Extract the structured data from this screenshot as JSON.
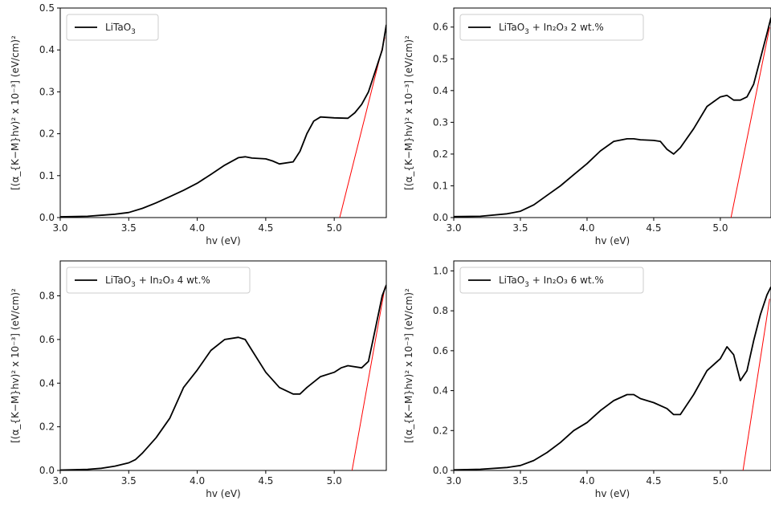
{
  "chart_data": [
    {
      "type": "line",
      "xlabel": "hv (eV)",
      "ylabel": "[(α_{K−M}hv)² x 10⁻³] (eV/cm)²",
      "xlim": [
        3.0,
        5.38
      ],
      "ylim": [
        0.0,
        0.5
      ],
      "xticks": [
        "3.0",
        "3.5",
        "4.0",
        "4.5",
        "5.0"
      ],
      "yticks": [
        "0.0",
        "0.1",
        "0.2",
        "0.3",
        "0.4",
        "0.5"
      ],
      "legend": {
        "placement": "upper-left",
        "label_base": "LiTaO",
        "label_sub": "3",
        "label_rest": ""
      },
      "series": [
        {
          "name": "LiTaO3",
          "color": "#000000",
          "x": [
            3.0,
            3.2,
            3.4,
            3.5,
            3.6,
            3.7,
            3.8,
            3.9,
            4.0,
            4.1,
            4.2,
            4.3,
            4.35,
            4.4,
            4.5,
            4.55,
            4.6,
            4.7,
            4.75,
            4.8,
            4.85,
            4.9,
            5.0,
            5.1,
            5.15,
            5.2,
            5.25,
            5.3,
            5.35,
            5.38
          ],
          "y": [
            0.002,
            0.003,
            0.008,
            0.012,
            0.022,
            0.035,
            0.05,
            0.065,
            0.082,
            0.103,
            0.125,
            0.143,
            0.145,
            0.142,
            0.14,
            0.135,
            0.128,
            0.133,
            0.158,
            0.2,
            0.23,
            0.24,
            0.238,
            0.237,
            0.25,
            0.27,
            0.3,
            0.35,
            0.4,
            0.46
          ]
        }
      ],
      "tangent": {
        "color": "#ff0000",
        "x": [
          5.04,
          5.37
        ],
        "y": [
          0.0,
          0.43
        ]
      }
    },
    {
      "type": "line",
      "xlabel": "hv (eV)",
      "ylabel": "[(α_{K−M}hv)² x 10⁻³] (eV/cm)²",
      "xlim": [
        3.0,
        5.38
      ],
      "ylim": [
        0.0,
        0.66
      ],
      "xticks": [
        "3.0",
        "3.5",
        "4.0",
        "4.5",
        "5.0"
      ],
      "yticks": [
        "0.0",
        "0.1",
        "0.2",
        "0.3",
        "0.4",
        "0.5",
        "0.6"
      ],
      "legend": {
        "placement": "upper-left",
        "label_base": "LiTaO",
        "label_sub": "3",
        "label_rest": " + In₂O₃ 2 wt.%"
      },
      "series": [
        {
          "name": "LiTaO3 + In2O3 2 wt.%",
          "color": "#000000",
          "x": [
            3.0,
            3.2,
            3.4,
            3.5,
            3.6,
            3.7,
            3.8,
            3.9,
            4.0,
            4.1,
            4.2,
            4.3,
            4.35,
            4.4,
            4.5,
            4.55,
            4.6,
            4.65,
            4.7,
            4.8,
            4.9,
            5.0,
            5.05,
            5.1,
            5.15,
            5.2,
            5.25,
            5.3,
            5.35,
            5.38
          ],
          "y": [
            0.003,
            0.004,
            0.012,
            0.02,
            0.04,
            0.07,
            0.1,
            0.135,
            0.17,
            0.21,
            0.24,
            0.248,
            0.248,
            0.245,
            0.243,
            0.24,
            0.215,
            0.2,
            0.22,
            0.28,
            0.35,
            0.38,
            0.385,
            0.37,
            0.37,
            0.38,
            0.42,
            0.5,
            0.58,
            0.63
          ]
        }
      ],
      "tangent": {
        "color": "#ff0000",
        "x": [
          5.08,
          5.37
        ],
        "y": [
          0.0,
          0.6
        ]
      }
    },
    {
      "type": "line",
      "xlabel": "hv (eV)",
      "ylabel": "[(α_{K−M}hv)² x 10⁻³] (eV/cm)²",
      "xlim": [
        3.0,
        5.38
      ],
      "ylim": [
        0.0,
        0.96
      ],
      "xticks": [
        "3.0",
        "3.5",
        "4.0",
        "4.5",
        "5.0"
      ],
      "yticks": [
        "0.0",
        "0.2",
        "0.4",
        "0.6",
        "0.8"
      ],
      "legend": {
        "placement": "upper-left",
        "label_base": "LiTaO",
        "label_sub": "3",
        "label_rest": " + In₂O₃ 4 wt.%"
      },
      "series": [
        {
          "name": "LiTaO3 + In2O3 4 wt.%",
          "color": "#000000",
          "x": [
            3.0,
            3.2,
            3.3,
            3.4,
            3.5,
            3.55,
            3.6,
            3.7,
            3.8,
            3.9,
            4.0,
            4.1,
            4.2,
            4.3,
            4.35,
            4.4,
            4.5,
            4.6,
            4.7,
            4.75,
            4.8,
            4.9,
            5.0,
            5.05,
            5.1,
            5.2,
            5.25,
            5.3,
            5.35,
            5.38
          ],
          "y": [
            0.002,
            0.005,
            0.01,
            0.02,
            0.035,
            0.05,
            0.08,
            0.15,
            0.24,
            0.38,
            0.46,
            0.55,
            0.6,
            0.61,
            0.6,
            0.55,
            0.45,
            0.38,
            0.35,
            0.35,
            0.38,
            0.43,
            0.45,
            0.47,
            0.48,
            0.47,
            0.5,
            0.65,
            0.8,
            0.85
          ]
        }
      ],
      "tangent": {
        "color": "#ff0000",
        "x": [
          5.13,
          5.37
        ],
        "y": [
          0.0,
          0.84
        ]
      }
    },
    {
      "type": "line",
      "xlabel": "hv (eV)",
      "ylabel": "[(α_{K−M}hv)² x 10⁻³] (eV/cm)²",
      "xlim": [
        3.0,
        5.38
      ],
      "ylim": [
        0.0,
        1.05
      ],
      "xticks": [
        "3.0",
        "3.5",
        "4.0",
        "4.5",
        "5.0"
      ],
      "yticks": [
        "0.0",
        "0.2",
        "0.4",
        "0.6",
        "0.8",
        "1.0"
      ],
      "legend": {
        "placement": "upper-left",
        "label_base": "LiTaO",
        "label_sub": "3",
        "label_rest": " + In₂O₃ 6 wt.%"
      },
      "series": [
        {
          "name": "LiTaO3 + In2O3 6 wt.%",
          "color": "#000000",
          "x": [
            3.0,
            3.2,
            3.4,
            3.5,
            3.6,
            3.7,
            3.8,
            3.9,
            4.0,
            4.1,
            4.2,
            4.3,
            4.35,
            4.4,
            4.5,
            4.6,
            4.65,
            4.7,
            4.8,
            4.9,
            5.0,
            5.05,
            5.1,
            5.15,
            5.2,
            5.25,
            5.3,
            5.35,
            5.38
          ],
          "y": [
            0.003,
            0.006,
            0.015,
            0.025,
            0.05,
            0.09,
            0.14,
            0.2,
            0.24,
            0.3,
            0.35,
            0.38,
            0.38,
            0.36,
            0.34,
            0.31,
            0.28,
            0.28,
            0.38,
            0.5,
            0.56,
            0.62,
            0.58,
            0.45,
            0.5,
            0.65,
            0.78,
            0.88,
            0.92
          ]
        }
      ],
      "tangent": {
        "color": "#ff0000",
        "x": [
          5.17,
          5.37
        ],
        "y": [
          0.0,
          0.86
        ]
      }
    }
  ]
}
